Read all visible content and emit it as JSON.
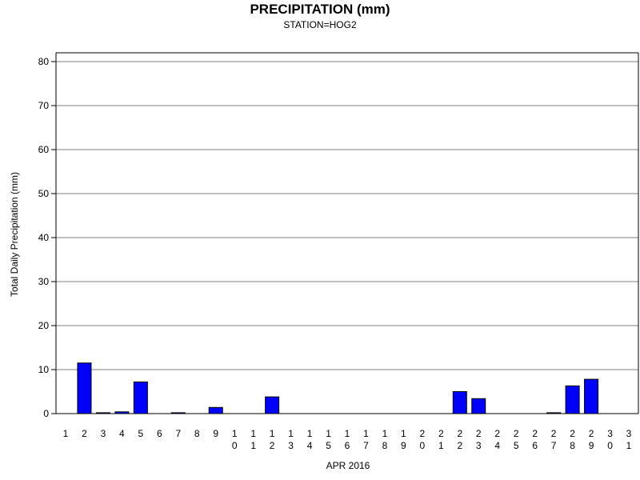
{
  "chart_data": {
    "type": "bar",
    "title": "PRECIPITATION (mm)",
    "subtitle": "STATION=HOG2",
    "xlabel": "APR 2016",
    "ylabel": "Total Daily Precipitation (mm)",
    "ylim": [
      0,
      80
    ],
    "yticks": [
      "0",
      "10",
      "20",
      "30",
      "40",
      "50",
      "60",
      "70",
      "80"
    ],
    "grid": true,
    "bar_color": "#0000ff",
    "categories": [
      "1",
      "2",
      "3",
      "4",
      "5",
      "6",
      "7",
      "8",
      "9",
      "10",
      "11",
      "12",
      "13",
      "14",
      "15",
      "16",
      "17",
      "18",
      "19",
      "20",
      "21",
      "22",
      "23",
      "24",
      "25",
      "26",
      "27",
      "28",
      "29",
      "30",
      "31"
    ],
    "values": [
      0,
      11.5,
      0.2,
      0.4,
      7.2,
      0,
      0.2,
      0,
      1.4,
      0,
      0,
      3.8,
      0,
      0,
      0,
      0,
      0,
      0,
      0,
      0,
      0,
      5.0,
      3.4,
      0,
      0,
      0,
      0.2,
      6.3,
      7.8,
      0,
      0
    ]
  }
}
